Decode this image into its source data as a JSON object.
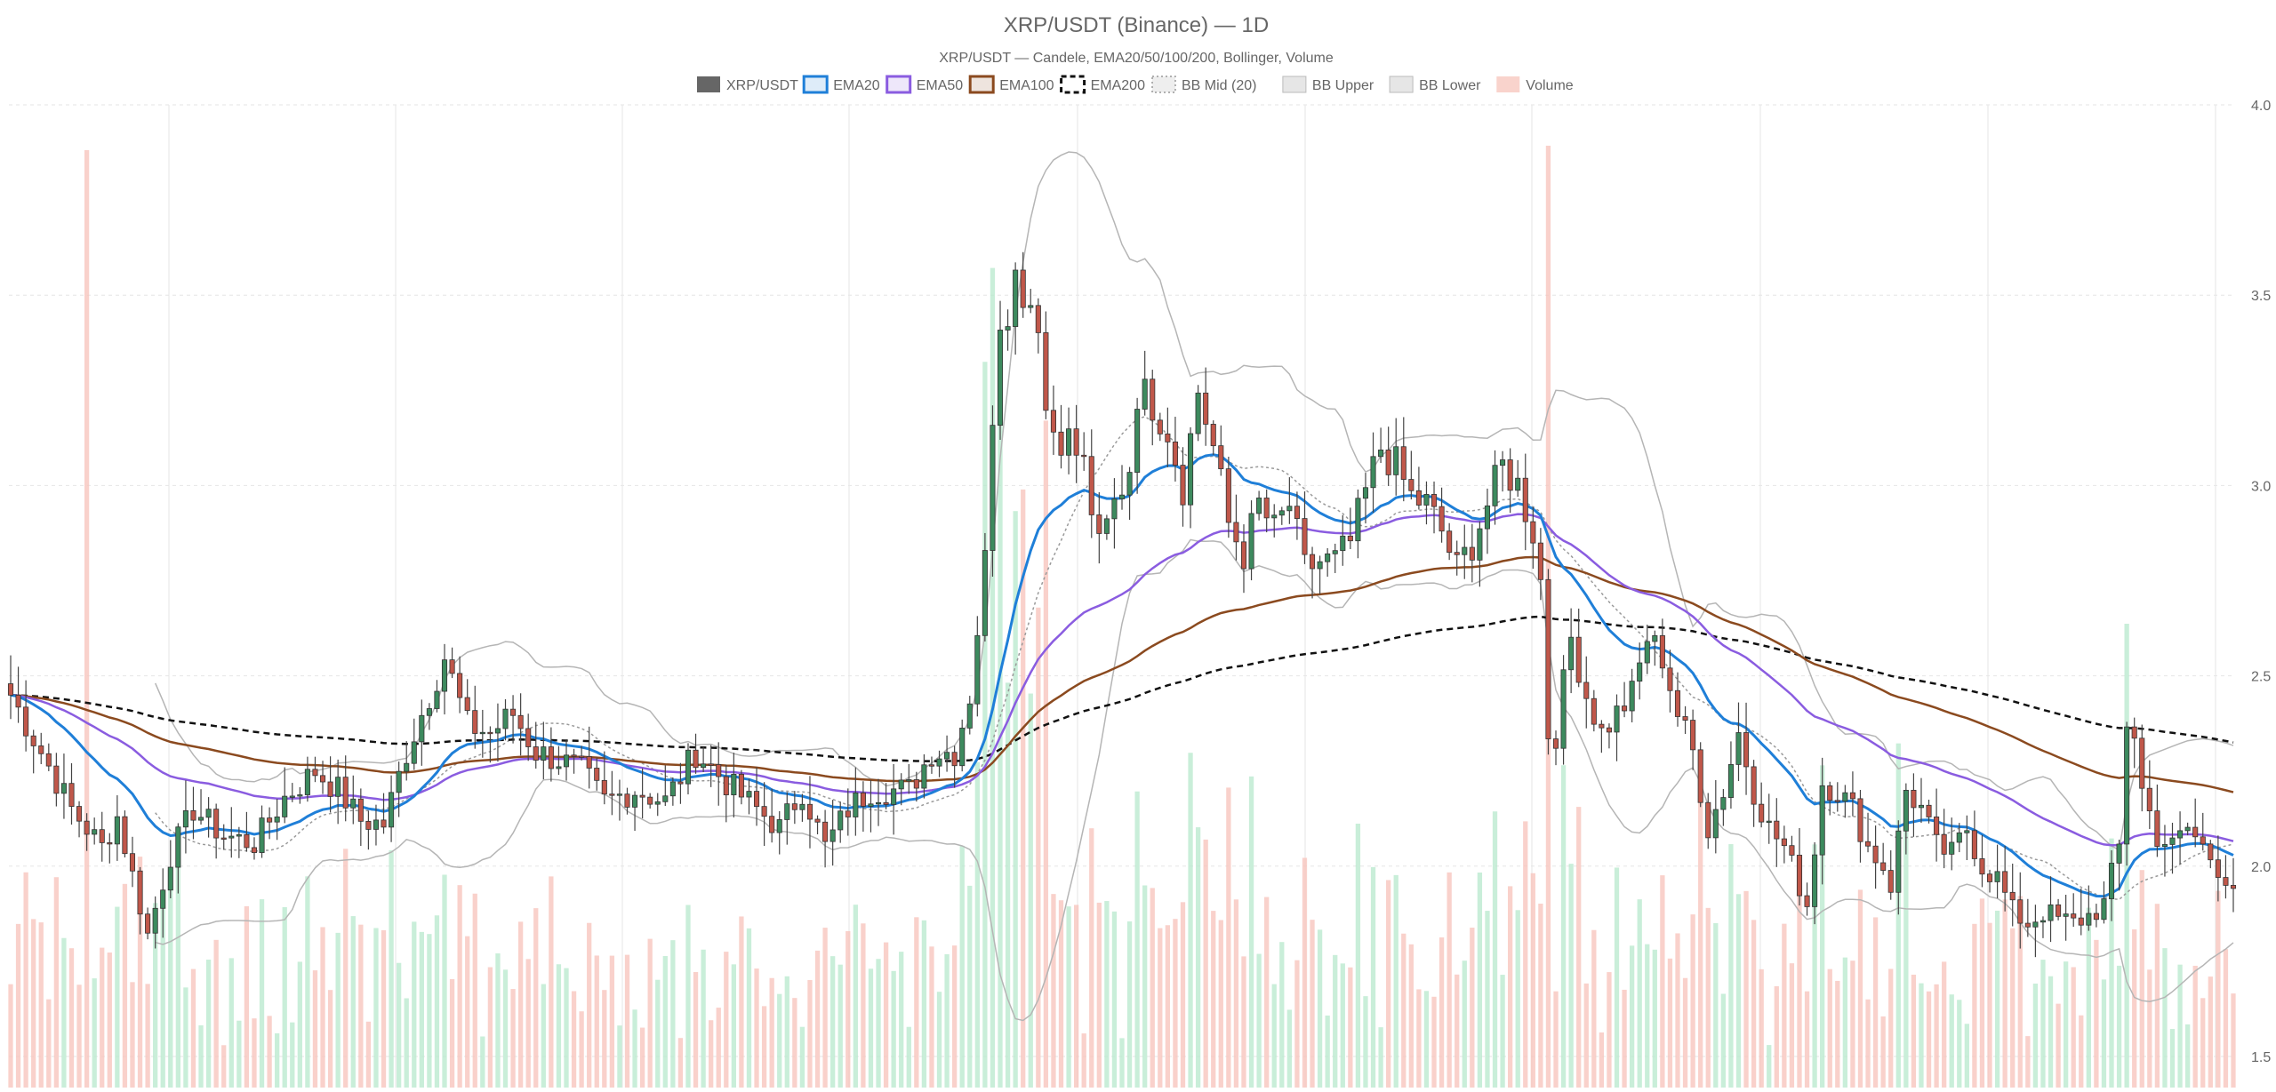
{
  "chart_data": {
    "type": "candlestick",
    "title": "XRP/USDT (Binance) — 1D",
    "subtitle": "XRP/USDT — Candele, EMA20/50/100/200, Bollinger, Volume",
    "ylim": [
      1.5,
      4.0
    ],
    "y_ticks": [
      "4.0",
      "3.5",
      "3.0",
      "2.5",
      "2.0",
      "1.5"
    ],
    "y_tick_values": [
      4.0,
      3.5,
      3.0,
      2.5,
      2.0,
      1.5
    ],
    "grid": true,
    "legend_position": "top-center",
    "legend": [
      {
        "name": "XRP/USDT",
        "swatch": "solid",
        "color": "#666666"
      },
      {
        "name": "EMA20",
        "swatch": "line",
        "color": "#1f7fd8"
      },
      {
        "name": "EMA50",
        "swatch": "line",
        "color": "#8a5ce0"
      },
      {
        "name": "EMA100",
        "swatch": "line",
        "color": "#8b4a1f"
      },
      {
        "name": "EMA200",
        "swatch": "dashed",
        "color": "#111111"
      },
      {
        "name": "BB Mid (20)",
        "swatch": "dotted",
        "color": "#999999"
      },
      {
        "name": "BB Upper",
        "swatch": "light",
        "color": "#bbbbbb"
      },
      {
        "name": "BB Lower",
        "swatch": "light",
        "color": "#bbbbbb"
      },
      {
        "name": "Volume",
        "swatch": "pink",
        "color": "#f4a79c"
      }
    ],
    "colors": {
      "up": "#3d8a5e",
      "down": "#c0574a",
      "wick": "#444444",
      "vol_up": "#b7e8cc",
      "vol_down": "#f7c2ba",
      "bb": "#b5b5b5",
      "bb_mid": "#9a9a9a",
      "ema20": "#1f7fd8",
      "ema50": "#8a5ce0",
      "ema100": "#8b4a1f",
      "ema200": "#111111",
      "grid": "#e6e6e6"
    },
    "candles_count": 247,
    "close_anchors": [
      [
        0,
        2.45
      ],
      [
        4,
        2.3
      ],
      [
        8,
        2.15
      ],
      [
        12,
        2.05
      ],
      [
        14,
        2.13
      ],
      [
        18,
        1.82
      ],
      [
        21,
        2.03
      ],
      [
        24,
        2.15
      ],
      [
        28,
        2.08
      ],
      [
        32,
        2.06
      ],
      [
        36,
        2.18
      ],
      [
        40,
        2.25
      ],
      [
        43,
        2.2
      ],
      [
        46,
        2.12
      ],
      [
        49,
        2.11
      ],
      [
        52,
        2.3
      ],
      [
        55,
        2.45
      ],
      [
        57,
        2.55
      ],
      [
        60,
        2.37
      ],
      [
        63,
        2.35
      ],
      [
        66,
        2.4
      ],
      [
        69,
        2.3
      ],
      [
        72,
        2.28
      ],
      [
        75,
        2.25
      ],
      [
        78,
        2.17
      ],
      [
        82,
        2.2
      ],
      [
        86,
        2.17
      ],
      [
        90,
        2.3
      ],
      [
        94,
        2.22
      ],
      [
        98,
        2.15
      ],
      [
        101,
        2.1
      ],
      [
        104,
        2.2
      ],
      [
        107,
        2.05
      ],
      [
        110,
        2.15
      ],
      [
        113,
        2.2
      ],
      [
        116,
        2.2
      ],
      [
        118,
        2.2
      ],
      [
        121,
        2.3
      ],
      [
        124,
        2.3
      ],
      [
        126,
        2.45
      ],
      [
        128,
        2.8
      ],
      [
        129,
        3.2
      ],
      [
        130,
        3.45
      ],
      [
        131,
        3.48
      ],
      [
        132,
        3.55
      ],
      [
        133,
        3.52
      ],
      [
        135,
        3.45
      ],
      [
        136,
        3.2
      ],
      [
        137,
        3.15
      ],
      [
        139,
        3.12
      ],
      [
        141,
        3.05
      ],
      [
        143,
        2.83
      ],
      [
        145,
        2.95
      ],
      [
        147,
        3.05
      ],
      [
        148,
        3.25
      ],
      [
        150,
        3.22
      ],
      [
        152,
        3.15
      ],
      [
        154,
        3.0
      ],
      [
        156,
        3.25
      ],
      [
        158,
        3.1
      ],
      [
        160,
        2.9
      ],
      [
        162,
        2.82
      ],
      [
        164,
        2.95
      ],
      [
        166,
        2.88
      ],
      [
        168,
        2.95
      ],
      [
        170,
        2.78
      ],
      [
        172,
        2.8
      ],
      [
        174,
        2.8
      ],
      [
        176,
        2.85
      ],
      [
        178,
        2.98
      ],
      [
        180,
        3.1
      ],
      [
        182,
        3.05
      ],
      [
        184,
        2.97
      ],
      [
        186,
        2.95
      ],
      [
        188,
        2.88
      ],
      [
        190,
        2.78
      ],
      [
        192,
        2.85
      ],
      [
        194,
        2.95
      ],
      [
        196,
        3.05
      ],
      [
        198,
        3.0
      ],
      [
        200,
        2.88
      ],
      [
        201,
        2.75
      ],
      [
        202,
        2.35
      ],
      [
        203,
        2.35
      ],
      [
        205,
        2.6
      ],
      [
        207,
        2.45
      ],
      [
        209,
        2.35
      ],
      [
        211,
        2.4
      ],
      [
        213,
        2.45
      ],
      [
        215,
        2.6
      ],
      [
        217,
        2.55
      ],
      [
        219,
        2.4
      ],
      [
        221,
        2.3
      ],
      [
        223,
        2.1
      ],
      [
        225,
        2.2
      ],
      [
        227,
        2.35
      ],
      [
        229,
        2.2
      ],
      [
        231,
        2.1
      ],
      [
        233,
        2.05
      ],
      [
        235,
        1.95
      ],
      [
        236,
        1.9
      ],
      [
        237,
        2.05
      ],
      [
        238,
        2.22
      ],
      [
        240,
        2.2
      ],
      [
        242,
        2.15
      ],
      [
        244,
        2.05
      ],
      [
        246,
        2.0
      ]
    ],
    "close_anchors_tail": [
      [
        247,
        1.95
      ],
      [
        249,
        2.2
      ],
      [
        251,
        2.15
      ],
      [
        253,
        2.05
      ],
      [
        255,
        2.03
      ],
      [
        257,
        2.1
      ],
      [
        259,
        2.0
      ],
      [
        261,
        1.97
      ],
      [
        263,
        1.88
      ],
      [
        265,
        1.85
      ],
      [
        267,
        1.88
      ],
      [
        269,
        1.86
      ],
      [
        271,
        1.85
      ],
      [
        273,
        1.87
      ],
      [
        275,
        1.9
      ],
      [
        277,
        2.05
      ],
      [
        278,
        2.38
      ],
      [
        279,
        2.35
      ],
      [
        280,
        2.2
      ],
      [
        282,
        2.08
      ],
      [
        284,
        2.05
      ],
      [
        286,
        2.1
      ],
      [
        288,
        2.05
      ],
      [
        290,
        2.0
      ],
      [
        292,
        1.95
      ]
    ],
    "volume_ylim": [
      0,
      1.0
    ]
  }
}
